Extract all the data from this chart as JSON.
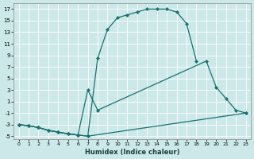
{
  "xlabel": "Humidex (Indice chaleur)",
  "bg_color": "#cce8e8",
  "line_color": "#1a7070",
  "grid_color": "#b0d8d8",
  "xlim": [
    -0.5,
    23.5
  ],
  "ylim": [
    -5.5,
    18
  ],
  "xticks": [
    0,
    1,
    2,
    3,
    4,
    5,
    6,
    7,
    8,
    9,
    10,
    11,
    12,
    13,
    14,
    15,
    16,
    17,
    18,
    19,
    20,
    21,
    22,
    23
  ],
  "yticks": [
    -5,
    -3,
    -1,
    1,
    3,
    5,
    7,
    9,
    11,
    13,
    15,
    17
  ],
  "line1_x": [
    0,
    1,
    2,
    3,
    4,
    5,
    6,
    7,
    8,
    9,
    10,
    11,
    12,
    13,
    14,
    15,
    16,
    17,
    18
  ],
  "line1_y": [
    -3,
    -3.2,
    -3.5,
    -4,
    -4.3,
    -4.6,
    -4.8,
    -5,
    8.5,
    13.5,
    15.5,
    16,
    16.5,
    17,
    17,
    17,
    16.5,
    14.5,
    8
  ],
  "line2_x": [
    0,
    1,
    2,
    3,
    4,
    5,
    6,
    7,
    8,
    19,
    20,
    21,
    22,
    23
  ],
  "line2_y": [
    -3,
    -3.2,
    -3.5,
    -4,
    -4.3,
    -4.6,
    -4.8,
    3,
    -0.5,
    8,
    3.5,
    1.5,
    -0.5,
    -1
  ],
  "line3_x": [
    0,
    1,
    2,
    3,
    4,
    5,
    6,
    7,
    23
  ],
  "line3_y": [
    -3,
    -3.2,
    -3.5,
    -4,
    -4.3,
    -4.6,
    -4.8,
    -5,
    -1
  ]
}
